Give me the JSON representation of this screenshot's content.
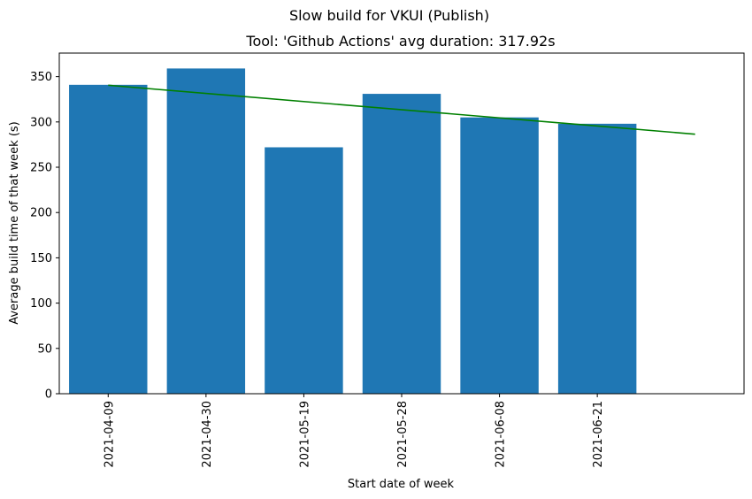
{
  "chart_data": {
    "type": "bar",
    "suptitle": "Slow build for VKUI (Publish)",
    "title": "Tool: 'Github Actions' avg duration: 317.92s",
    "xlabel": "Start date of week",
    "ylabel": "Average build time of that week (s)",
    "categories": [
      "2021-04-09",
      "2021-04-30",
      "2021-05-19",
      "2021-05-28",
      "2021-06-08",
      "2021-06-21"
    ],
    "values": [
      341,
      359,
      272,
      331,
      305,
      298
    ],
    "ylim": [
      0,
      376
    ],
    "yticks": [
      0,
      50,
      100,
      150,
      200,
      250,
      300,
      350
    ],
    "bar_color": "#1f77b4",
    "trend": {
      "color": "#008000",
      "x_index": [
        0,
        6
      ],
      "y": [
        340.5,
        286.5
      ]
    },
    "grid": false,
    "legend": "none"
  }
}
